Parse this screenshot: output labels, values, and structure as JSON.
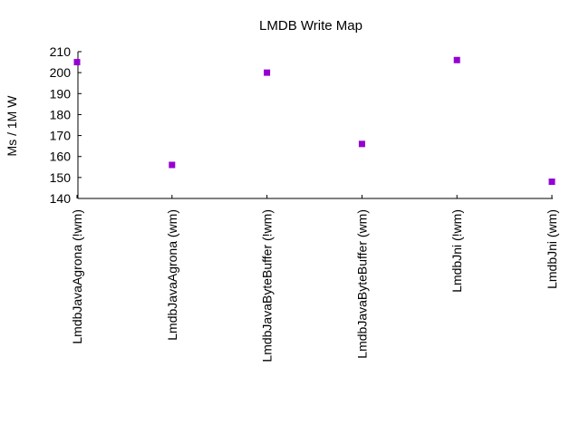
{
  "chart_data": {
    "type": "scatter",
    "title": "LMDB Write Map",
    "xlabel": "",
    "ylabel": "Ms / 1M W",
    "categories": [
      "LmdbJavaAgrona (!wm)",
      "LmdbJavaAgrona (wm)",
      "LmdbJavaByteBuffer (!wm)",
      "LmdbJavaByteBuffer (wm)",
      "LmdbJni (!wm)",
      "LmdbJni (wm)"
    ],
    "values": [
      205,
      156,
      200,
      166,
      206,
      148
    ],
    "ylim": [
      140,
      210
    ],
    "yticks": [
      140,
      150,
      160,
      170,
      180,
      190,
      200,
      210
    ],
    "grid": false,
    "marker_color": "#9400D3"
  }
}
